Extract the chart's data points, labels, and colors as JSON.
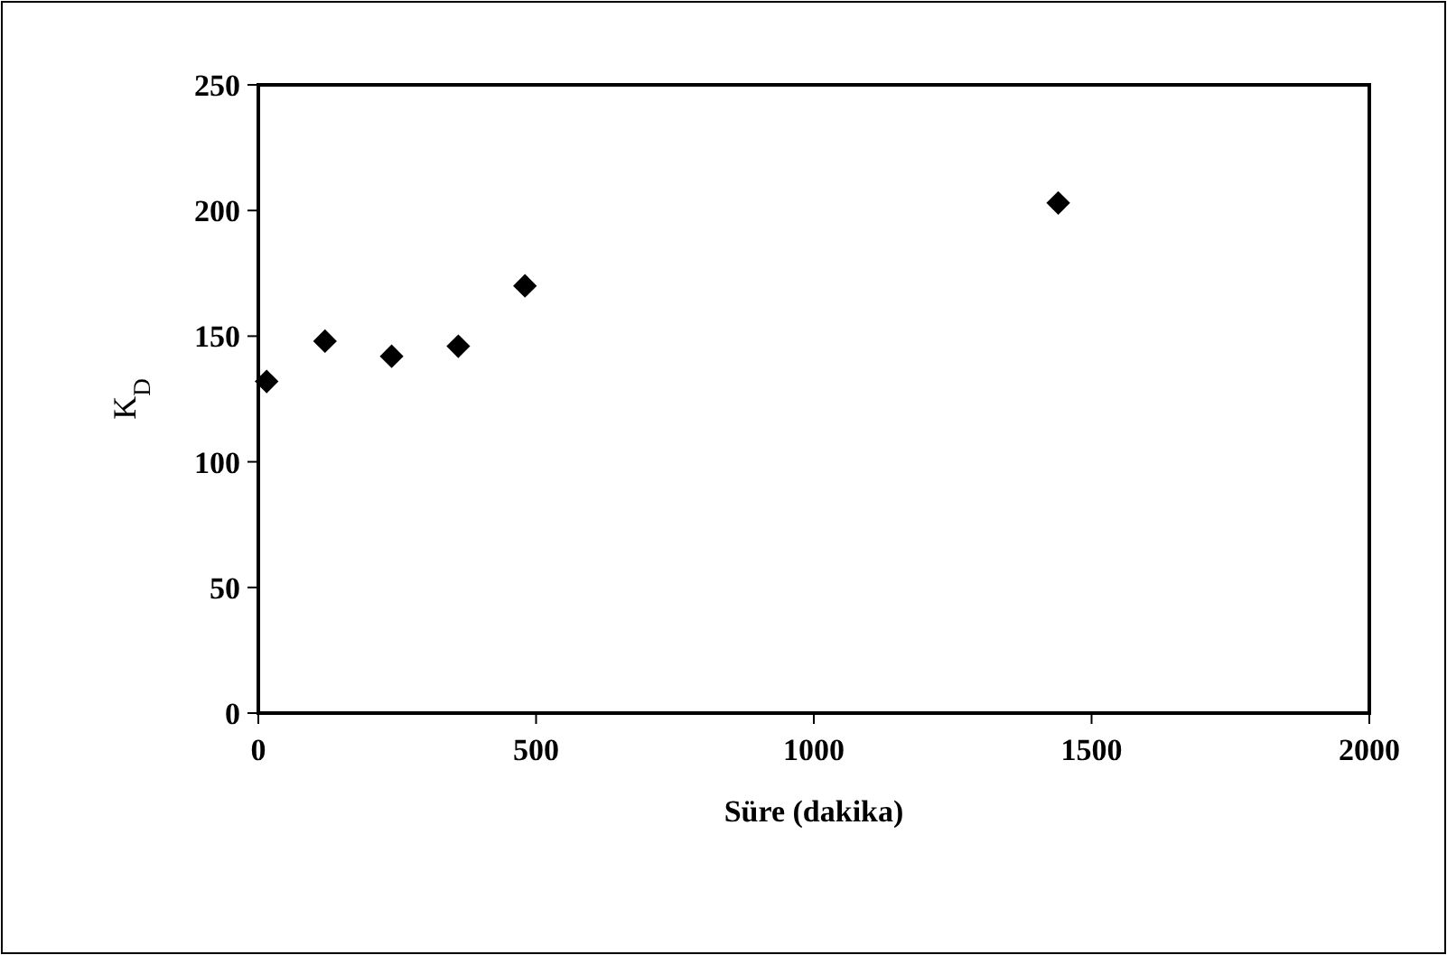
{
  "chart_data": {
    "type": "scatter",
    "xlabel": "Süre (dakika)",
    "ylabel": "K$_{D}$",
    "x": [
      15,
      120,
      240,
      360,
      480,
      1440
    ],
    "values": [
      132,
      148,
      142,
      146,
      170,
      203
    ],
    "color": "#000000",
    "marker": "diamond",
    "xlim": [
      0,
      2000
    ],
    "xticks": [
      0,
      500,
      1000,
      1500,
      2000
    ],
    "ylim": [
      0,
      250
    ],
    "yticks": [
      0,
      50,
      100,
      150,
      200,
      250
    ],
    "grid": false
  }
}
